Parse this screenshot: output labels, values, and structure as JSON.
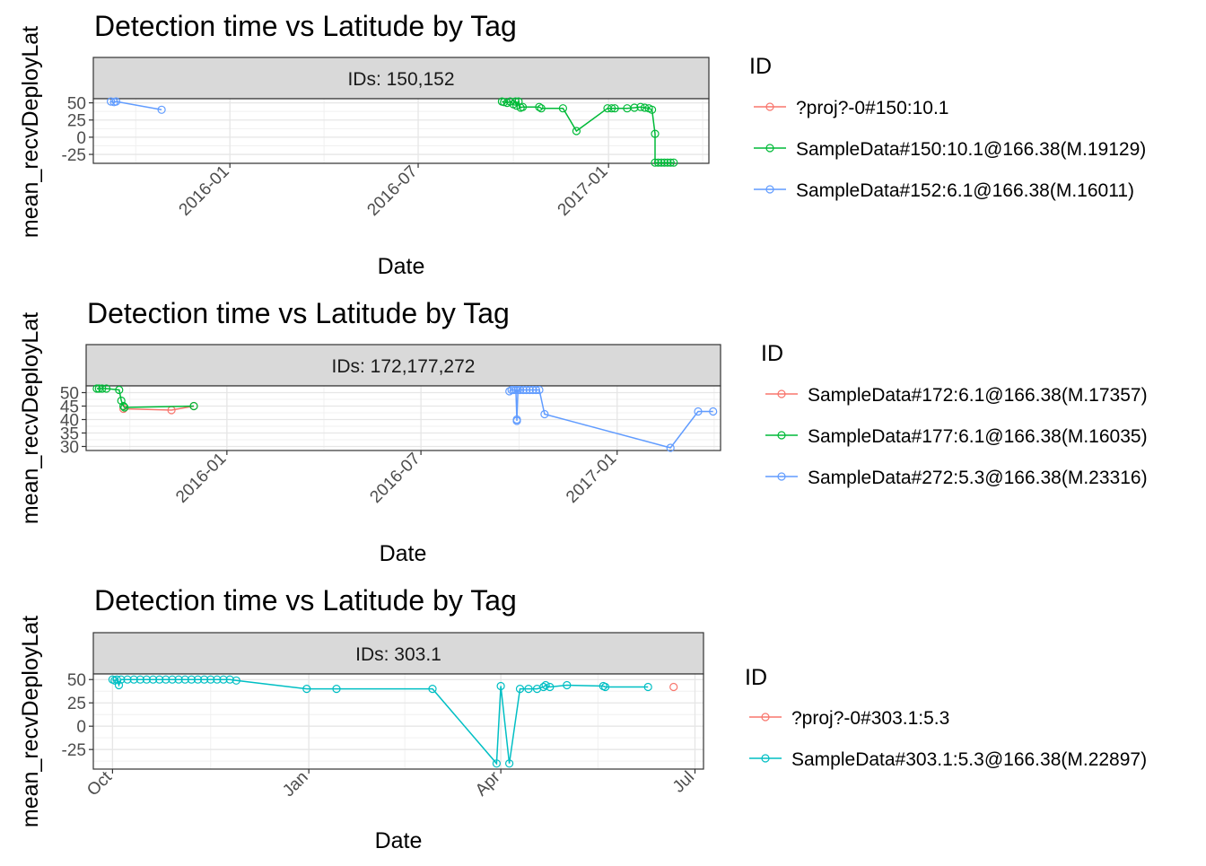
{
  "chart_data": [
    {
      "type": "line",
      "title": "Detection time vs Latitude by Tag",
      "facet_label": "IDs: 150,152",
      "xlabel": "Date",
      "ylabel": "mean_recvDeployLat",
      "x_type": "date",
      "xlim": [
        "2015-08-22",
        "2017-04-08"
      ],
      "ylim": [
        -38,
        56
      ],
      "x_ticks": [
        "2016-01-01",
        "2016-07-01",
        "2017-01-01"
      ],
      "x_tick_labels": [
        "2016-01",
        "2016-07",
        "2017-01"
      ],
      "y_ticks": [
        50,
        25,
        0,
        -25
      ],
      "y_tick_labels": [
        "50",
        "25",
        "0",
        "-25"
      ],
      "grid": true,
      "legend": {
        "title": "ID",
        "position": "right",
        "entries": [
          {
            "label": "?proj?-0#150:10.1",
            "color": "#F8766D"
          },
          {
            "label": "SampleData#150:10.1@166.38(M.19129)",
            "color": "#00BA38"
          },
          {
            "label": "SampleData#152:6.1@166.38(M.16011)",
            "color": "#619CFF"
          }
        ]
      },
      "series": [
        {
          "name": "?proj?-0#150:10.1",
          "color": "#F8766D",
          "points": []
        },
        {
          "name": "SampleData#150:10.1@166.38(M.19129)",
          "color": "#00BA38",
          "points": [
            [
              "2016-09-20",
              52
            ],
            [
              "2016-09-22",
              51
            ],
            [
              "2016-09-25",
              50
            ],
            [
              "2016-09-28",
              52
            ],
            [
              "2016-10-01",
              48
            ],
            [
              "2016-10-03",
              52
            ],
            [
              "2016-10-04",
              46
            ],
            [
              "2016-10-06",
              52
            ],
            [
              "2016-10-08",
              43
            ],
            [
              "2016-10-10",
              44
            ],
            [
              "2016-10-26",
              44
            ],
            [
              "2016-10-28",
              42
            ],
            [
              "2016-11-18",
              42
            ],
            [
              "2016-12-01",
              9
            ],
            [
              "2016-12-31",
              42
            ],
            [
              "2017-01-04",
              42
            ],
            [
              "2017-01-07",
              42
            ],
            [
              "2017-01-19",
              42
            ],
            [
              "2017-01-26",
              43
            ],
            [
              "2017-02-01",
              44
            ],
            [
              "2017-02-05",
              43
            ],
            [
              "2017-02-09",
              42
            ],
            [
              "2017-02-12",
              40
            ],
            [
              "2017-02-15",
              5
            ],
            [
              "2017-02-15",
              -37
            ],
            [
              "2017-02-18",
              -37
            ],
            [
              "2017-02-21",
              -37
            ],
            [
              "2017-02-24",
              -37
            ],
            [
              "2017-02-27",
              -37
            ],
            [
              "2017-03-02",
              -37
            ],
            [
              "2017-03-05",
              -37
            ]
          ]
        },
        {
          "name": "SampleData#152:6.1@166.38(M.16011)",
          "color": "#619CFF",
          "points": [
            [
              "2015-09-08",
              52
            ],
            [
              "2015-09-11",
              51
            ],
            [
              "2015-09-13",
              52
            ],
            [
              "2015-10-27",
              40
            ]
          ]
        }
      ]
    },
    {
      "type": "line",
      "title": "Detection time vs Latitude by Tag",
      "facet_label": "IDs: 172,177,272",
      "xlabel": "Date",
      "ylabel": "mean_recvDeployLat",
      "x_type": "date",
      "xlim": [
        "2015-08-22",
        "2017-04-08"
      ],
      "ylim": [
        28.5,
        52.5
      ],
      "x_ticks": [
        "2016-01-01",
        "2016-07-01",
        "2017-01-01"
      ],
      "x_tick_labels": [
        "2016-01",
        "2016-07",
        "2017-01"
      ],
      "y_ticks": [
        50,
        45,
        40,
        35,
        30
      ],
      "y_tick_labels": [
        "50",
        "45",
        "40",
        "35",
        "30"
      ],
      "grid": true,
      "legend": {
        "title": "ID",
        "position": "right",
        "entries": [
          {
            "label": "SampleData#172:6.1@166.38(M.17357)",
            "color": "#F8766D"
          },
          {
            "label": "SampleData#177:6.1@166.38(M.16035)",
            "color": "#00BA38"
          },
          {
            "label": "SampleData#272:5.3@166.38(M.23316)",
            "color": "#619CFF"
          }
        ]
      },
      "series": [
        {
          "name": "SampleData#172:6.1@166.38(M.17357)",
          "color": "#F8766D",
          "points": [
            [
              "2015-09-26",
              44
            ],
            [
              "2015-11-10",
              43.5
            ],
            [
              "2015-12-01",
              45
            ]
          ]
        },
        {
          "name": "SampleData#177:6.1@166.38(M.16035)",
          "color": "#00BA38",
          "points": [
            [
              "2015-09-01",
              51.5
            ],
            [
              "2015-09-03",
              51.5
            ],
            [
              "2015-09-06",
              51.5
            ],
            [
              "2015-09-10",
              51.5
            ],
            [
              "2015-09-22",
              51
            ],
            [
              "2015-09-24",
              47
            ],
            [
              "2015-09-26",
              45
            ],
            [
              "2015-09-27",
              44.5
            ],
            [
              "2015-12-01",
              45
            ]
          ]
        },
        {
          "name": "SampleData#272:5.3@166.38(M.23316)",
          "color": "#619CFF",
          "points": [
            [
              "2016-09-22",
              50.5
            ],
            [
              "2016-09-24",
              51
            ],
            [
              "2016-09-26",
              51
            ],
            [
              "2016-09-28",
              51
            ],
            [
              "2016-09-29",
              40
            ],
            [
              "2016-09-29",
              39.5
            ],
            [
              "2016-09-30",
              51
            ],
            [
              "2016-10-02",
              51
            ],
            [
              "2016-10-05",
              51
            ],
            [
              "2016-10-08",
              51
            ],
            [
              "2016-10-11",
              51
            ],
            [
              "2016-10-14",
              51
            ],
            [
              "2016-10-17",
              51
            ],
            [
              "2016-10-20",
              51
            ],
            [
              "2016-10-25",
              42
            ],
            [
              "2017-02-20",
              29.5
            ],
            [
              "2017-03-18",
              43
            ],
            [
              "2017-04-01",
              43
            ]
          ]
        }
      ]
    },
    {
      "type": "line",
      "title": "Detection time vs Latitude by Tag",
      "facet_label": "IDs: 303.1",
      "xlabel": "Date",
      "ylabel": "mean_recvDeployLat",
      "x_type": "date",
      "xlim": [
        "2016-09-22",
        "2017-07-05"
      ],
      "ylim": [
        -46,
        56
      ],
      "x_ticks": [
        "2016-10-01",
        "2017-01-01",
        "2017-04-01",
        "2017-07-01"
      ],
      "x_tick_labels": [
        "Oct",
        "Jan",
        "Apr",
        "Jul"
      ],
      "y_ticks": [
        50,
        25,
        0,
        -25
      ],
      "y_tick_labels": [
        "50",
        "25",
        "0",
        "-25"
      ],
      "grid": true,
      "legend": {
        "title": "ID",
        "position": "right",
        "entries": [
          {
            "label": "?proj?-0#303.1:5.3",
            "color": "#F8766D"
          },
          {
            "label": "SampleData#303.1:5.3@166.38(M.22897)",
            "color": "#00BFC4"
          }
        ]
      },
      "series": [
        {
          "name": "?proj?-0#303.1:5.3",
          "color": "#F8766D",
          "points": [
            [
              "2017-06-21",
              42
            ]
          ]
        },
        {
          "name": "SampleData#303.1:5.3@166.38(M.22897)",
          "color": "#00BFC4",
          "points": [
            [
              "2016-10-01",
              50
            ],
            [
              "2016-10-02",
              49
            ],
            [
              "2016-10-03",
              50
            ],
            [
              "2016-10-04",
              44
            ],
            [
              "2016-10-05",
              50
            ],
            [
              "2016-10-08",
              50
            ],
            [
              "2016-10-11",
              50
            ],
            [
              "2016-10-14",
              50
            ],
            [
              "2016-10-17",
              50
            ],
            [
              "2016-10-20",
              50
            ],
            [
              "2016-10-23",
              50
            ],
            [
              "2016-10-26",
              50
            ],
            [
              "2016-10-29",
              50
            ],
            [
              "2016-11-01",
              50
            ],
            [
              "2016-11-04",
              50
            ],
            [
              "2016-11-07",
              50
            ],
            [
              "2016-11-10",
              50
            ],
            [
              "2016-11-13",
              50
            ],
            [
              "2016-11-16",
              50
            ],
            [
              "2016-11-19",
              50
            ],
            [
              "2016-11-22",
              50
            ],
            [
              "2016-11-25",
              50
            ],
            [
              "2016-11-28",
              49
            ],
            [
              "2016-12-31",
              40
            ],
            [
              "2017-01-14",
              40
            ],
            [
              "2017-02-28",
              40
            ],
            [
              "2017-03-30",
              -40
            ],
            [
              "2017-04-01",
              43
            ],
            [
              "2017-04-05",
              -40
            ],
            [
              "2017-04-10",
              40
            ],
            [
              "2017-04-14",
              40
            ],
            [
              "2017-04-18",
              40
            ],
            [
              "2017-04-21",
              42
            ],
            [
              "2017-04-22",
              44
            ],
            [
              "2017-04-24",
              42
            ],
            [
              "2017-05-02",
              44
            ],
            [
              "2017-05-19",
              43
            ],
            [
              "2017-05-20",
              42
            ],
            [
              "2017-06-09",
              42
            ]
          ]
        }
      ]
    }
  ]
}
